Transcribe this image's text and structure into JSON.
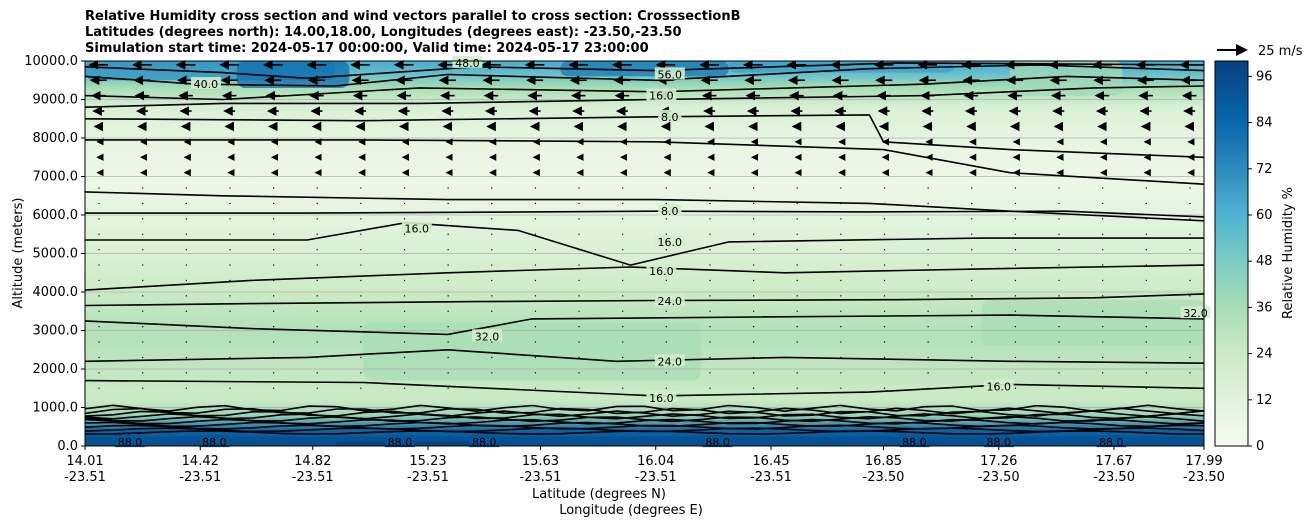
{
  "title": {
    "line1": "Relative Humidity cross section and wind vectors parallel to cross section: CrosssectionB",
    "line2": "Latitudes (degrees north): 14.00,18.00, Longitudes (degrees east): -23.50,-23.50",
    "line3": "Simulation start time: 2024-05-17 00:00:00, Valid time: 2024-05-17 23:00:00"
  },
  "chart_data": {
    "type": "heatmap",
    "title": "Relative Humidity cross section and wind vectors parallel to cross section: CrosssectionB",
    "ylabel": "Altitude (meters)",
    "xlabel_lat": "Latitude (degrees N)",
    "xlabel_lon": "Longitude (degrees E)",
    "ylim": [
      0,
      10000
    ],
    "xlim": [
      14.01,
      17.99
    ],
    "y_ticks": [
      "0.0",
      "1000.0",
      "2000.0",
      "3000.0",
      "4000.0",
      "5000.0",
      "6000.0",
      "7000.0",
      "8000.0",
      "9000.0",
      "10000.0"
    ],
    "x_ticks": [
      {
        "lat": "14.01",
        "lon": "-23.51"
      },
      {
        "lat": "14.42",
        "lon": "-23.51"
      },
      {
        "lat": "14.82",
        "lon": "-23.51"
      },
      {
        "lat": "15.23",
        "lon": "-23.51"
      },
      {
        "lat": "15.63",
        "lon": "-23.51"
      },
      {
        "lat": "16.04",
        "lon": "-23.51"
      },
      {
        "lat": "16.45",
        "lon": "-23.51"
      },
      {
        "lat": "16.85",
        "lon": "-23.50"
      },
      {
        "lat": "17.26",
        "lon": "-23.50"
      },
      {
        "lat": "17.67",
        "lon": "-23.50"
      },
      {
        "lat": "17.99",
        "lon": "-23.50"
      }
    ],
    "colorbar": {
      "label": "Relative Humidity %",
      "ticks": [
        "0",
        "12",
        "24",
        "36",
        "48",
        "60",
        "72",
        "84",
        "96"
      ],
      "range": [
        0,
        100
      ],
      "levels": 25
    },
    "quiver_key": "25 m/s",
    "rh_profile": [
      {
        "alt": 0,
        "rh": 92
      },
      {
        "alt": 400,
        "rh": 86
      },
      {
        "alt": 800,
        "rh": 40
      },
      {
        "alt": 1200,
        "rh": 24
      },
      {
        "alt": 2000,
        "rh": 28
      },
      {
        "alt": 3000,
        "rh": 33
      },
      {
        "alt": 4000,
        "rh": 24
      },
      {
        "alt": 5000,
        "rh": 16
      },
      {
        "alt": 6000,
        "rh": 10
      },
      {
        "alt": 7000,
        "rh": 6
      },
      {
        "alt": 8000,
        "rh": 9
      },
      {
        "alt": 8800,
        "rh": 16
      },
      {
        "alt": 9300,
        "rh": 36
      },
      {
        "alt": 9700,
        "rh": 55
      },
      {
        "alt": 10000,
        "rh": 62
      }
    ],
    "contour_labels": [
      {
        "text": "8.0",
        "lat": 16.09,
        "alt": 8550
      },
      {
        "text": "8.0",
        "lat": 16.09,
        "alt": 6100
      },
      {
        "text": "16.0",
        "lat": 16.09,
        "alt": 5300
      },
      {
        "text": "16.0",
        "lat": 16.06,
        "alt": 4550
      },
      {
        "text": "16.0",
        "lat": 15.19,
        "alt": 5650
      },
      {
        "text": "24.0",
        "lat": 16.09,
        "alt": 3760
      },
      {
        "text": "32.0",
        "lat": 15.44,
        "alt": 2850
      },
      {
        "text": "24.0",
        "lat": 16.09,
        "alt": 2200
      },
      {
        "text": "16.0",
        "lat": 16.06,
        "alt": 1250
      },
      {
        "text": "16.0",
        "lat": 17.26,
        "alt": 1550
      },
      {
        "text": "32.0",
        "lat": 17.96,
        "alt": 3450
      },
      {
        "text": "40.0",
        "lat": 14.44,
        "alt": 9400
      },
      {
        "text": "56.0",
        "lat": 16.09,
        "alt": 9650
      },
      {
        "text": "16.0",
        "lat": 16.06,
        "alt": 9100
      },
      {
        "text": "48.0",
        "lat": 15.37,
        "alt": 9950
      },
      {
        "text": "88.0",
        "lat": 14.17,
        "alt": 100
      },
      {
        "text": "88.0",
        "lat": 14.47,
        "alt": 100
      },
      {
        "text": "88.0",
        "lat": 15.13,
        "alt": 100
      },
      {
        "text": "88.0",
        "lat": 15.43,
        "alt": 100
      },
      {
        "text": "88.0",
        "lat": 16.26,
        "alt": 100
      },
      {
        "text": "88.0",
        "lat": 16.96,
        "alt": 100
      },
      {
        "text": "88.0",
        "lat": 17.26,
        "alt": 100
      },
      {
        "text": "88.0",
        "lat": 17.66,
        "alt": 100
      }
    ]
  }
}
